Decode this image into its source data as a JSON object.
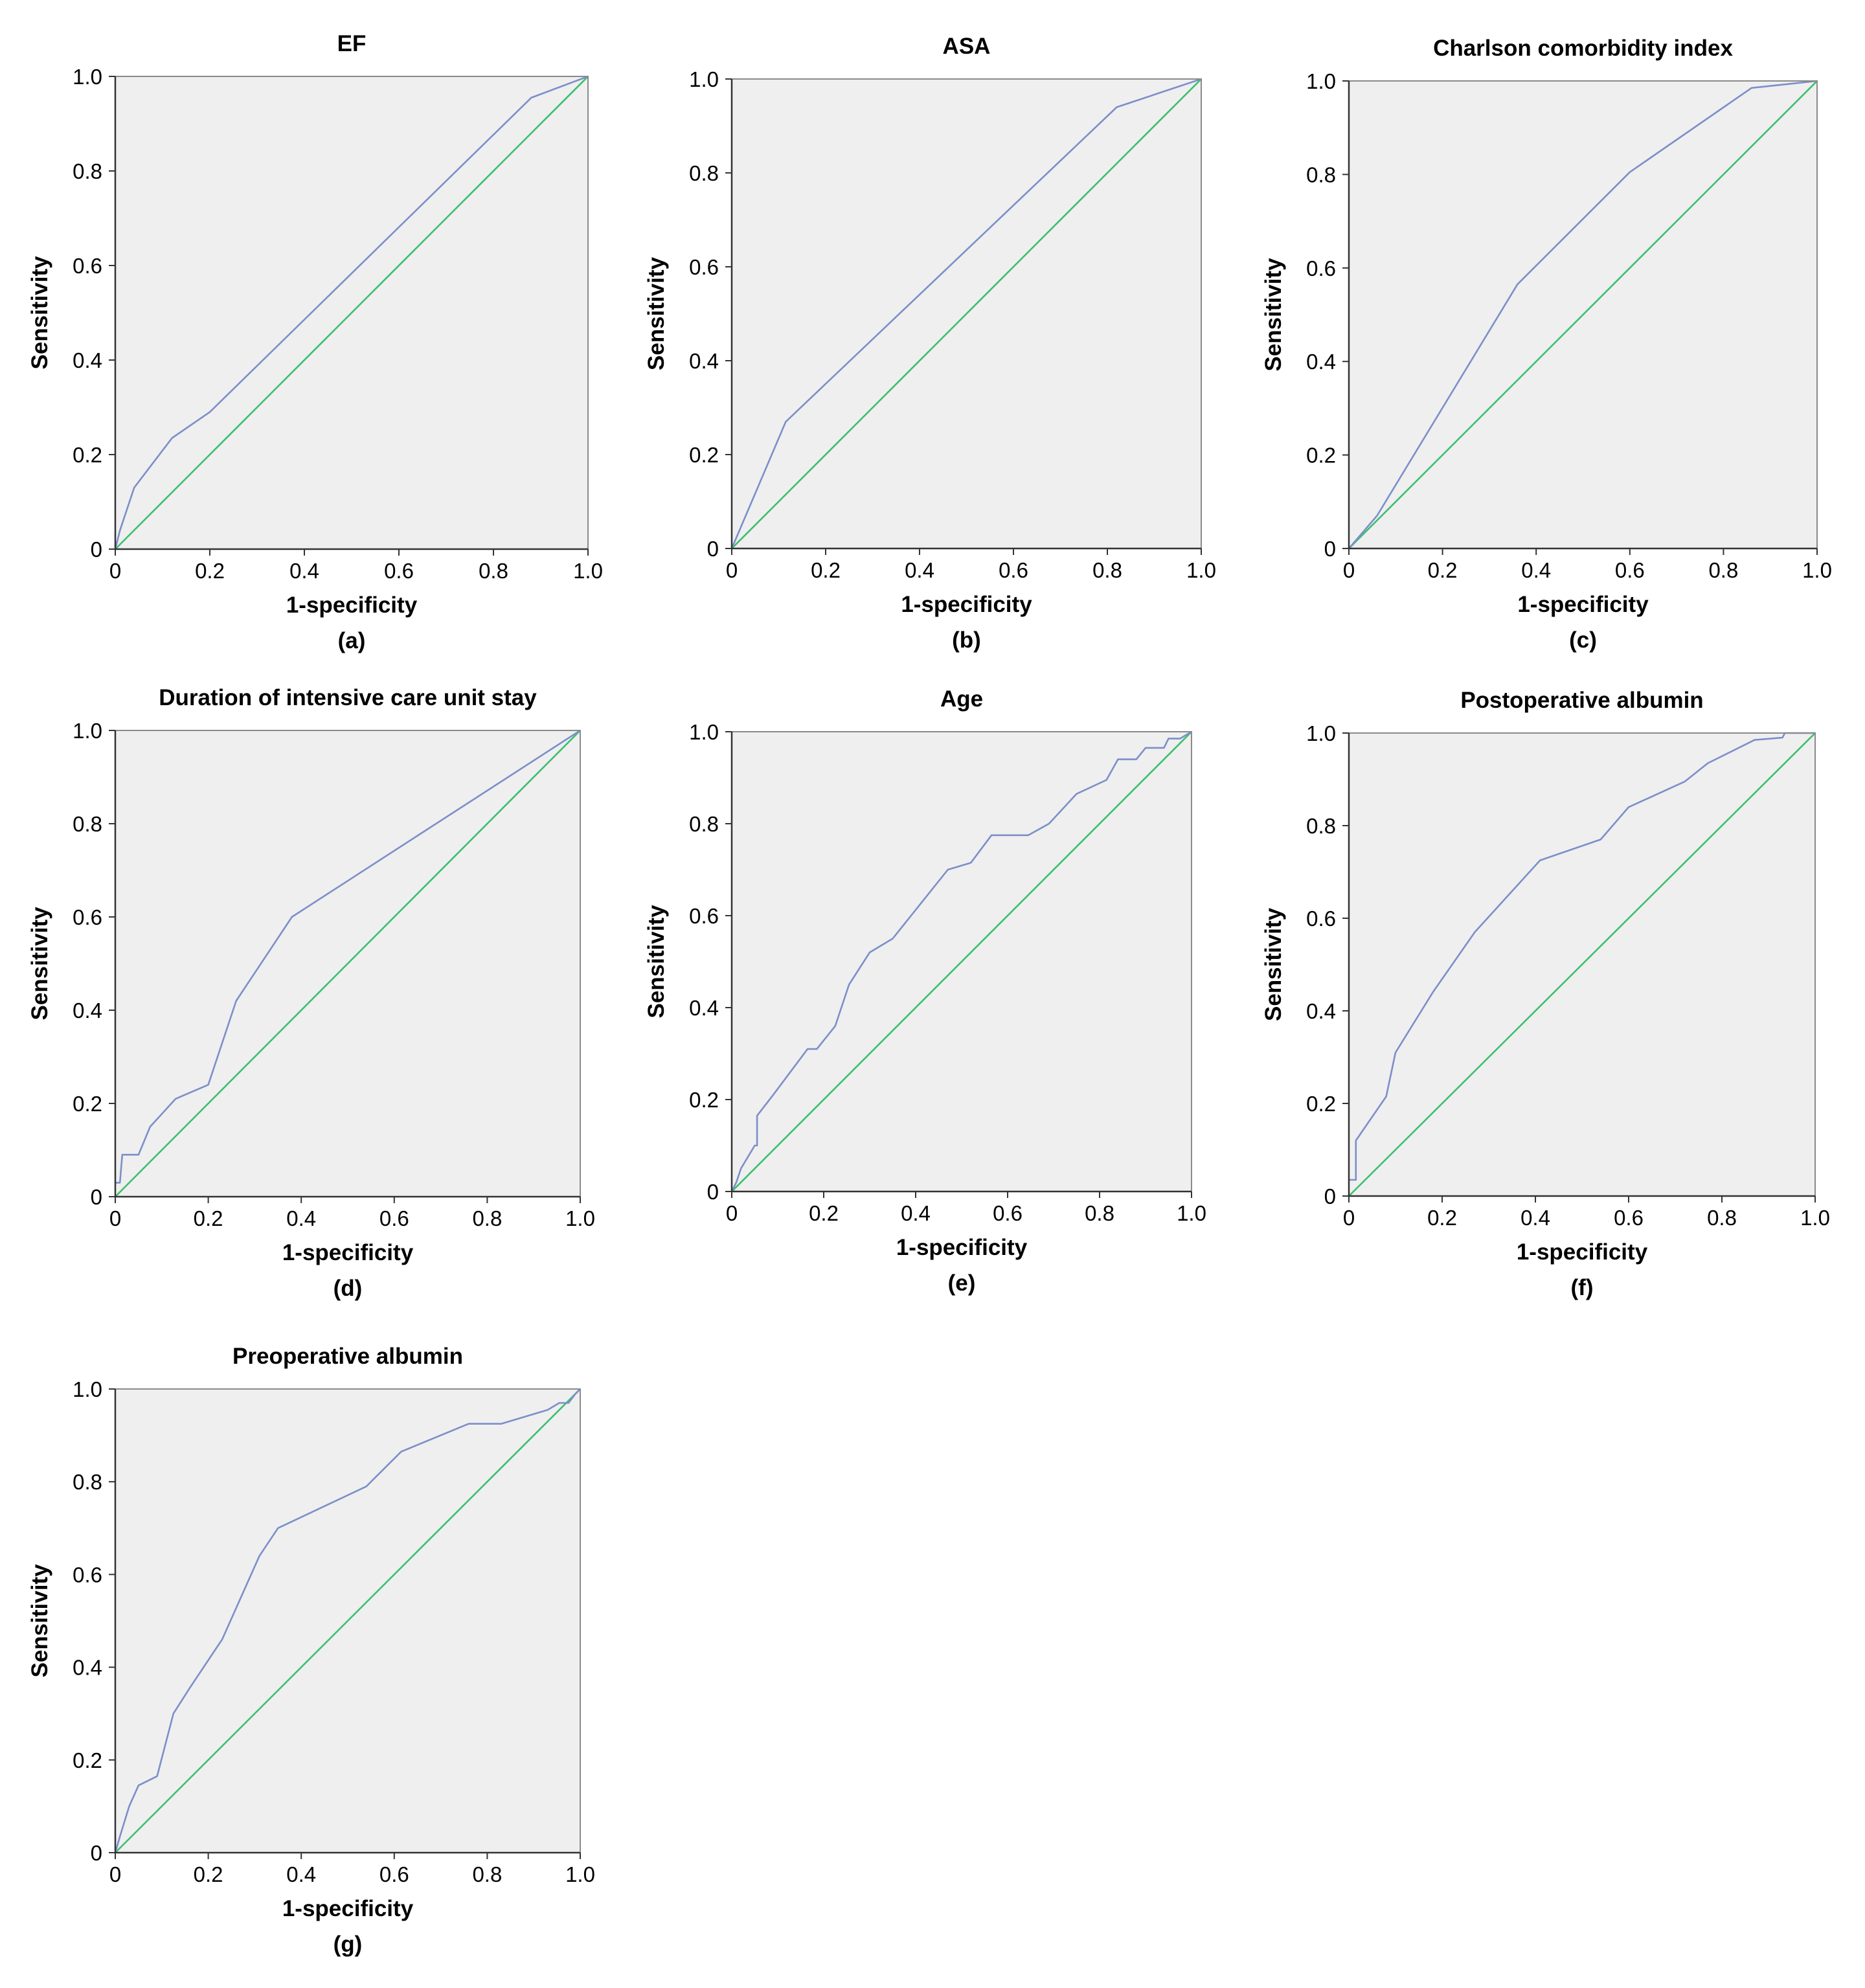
{
  "chart_data": [
    {
      "type": "line",
      "title": "EF",
      "panel_label": "(a)",
      "xlabel": "1-specificity",
      "ylabel": "Sensitivity",
      "xlim": [
        0,
        1
      ],
      "ylim": [
        0,
        1
      ],
      "x_ticks": [
        "0",
        "0.2",
        "0.4",
        "0.6",
        "0.8",
        "1.0"
      ],
      "y_ticks": [
        "0",
        "0.2",
        "0.4",
        "0.6",
        "0.8",
        "1.0"
      ],
      "series": [
        {
          "name": "ROC curve",
          "color": "#7b8fc9",
          "x": [
            0,
            0.01,
            0.04,
            0.12,
            0.2,
            0.88,
            1.0
          ],
          "y": [
            0,
            0.04,
            0.13,
            0.235,
            0.29,
            0.955,
            1.0
          ]
        },
        {
          "name": "Reference line",
          "color": "#3dbf6f",
          "x": [
            0,
            1
          ],
          "y": [
            0,
            1
          ]
        }
      ]
    },
    {
      "type": "line",
      "title": "ASA",
      "panel_label": "(b)",
      "xlabel": "1-specificity",
      "ylabel": "Sensitivity",
      "xlim": [
        0,
        1
      ],
      "ylim": [
        0,
        1
      ],
      "x_ticks": [
        "0",
        "0.2",
        "0.4",
        "0.6",
        "0.8",
        "1.0"
      ],
      "y_ticks": [
        "0",
        "0.2",
        "0.4",
        "0.6",
        "0.8",
        "1.0"
      ],
      "series": [
        {
          "name": "ROC curve",
          "color": "#7b8fc9",
          "x": [
            0,
            0.115,
            0.82,
            1.0
          ],
          "y": [
            0,
            0.27,
            0.94,
            1.0
          ]
        },
        {
          "name": "Reference line",
          "color": "#3dbf6f",
          "x": [
            0,
            1
          ],
          "y": [
            0,
            1
          ]
        }
      ]
    },
    {
      "type": "line",
      "title": "Charlson comorbidity index",
      "panel_label": "(c)",
      "xlabel": "1-specificity",
      "ylabel": "Sensitivity",
      "xlim": [
        0,
        1
      ],
      "ylim": [
        0,
        1
      ],
      "x_ticks": [
        "0",
        "0.2",
        "0.4",
        "0.6",
        "0.8",
        "1.0"
      ],
      "y_ticks": [
        "0",
        "0.2",
        "0.4",
        "0.6",
        "0.8",
        "1.0"
      ],
      "series": [
        {
          "name": "ROC curve",
          "color": "#7b8fc9",
          "x": [
            0,
            0.06,
            0.36,
            0.6,
            0.86,
            1.0
          ],
          "y": [
            0,
            0.07,
            0.565,
            0.805,
            0.985,
            1.0
          ]
        },
        {
          "name": "Reference line",
          "color": "#3dbf6f",
          "x": [
            0,
            1
          ],
          "y": [
            0,
            1
          ]
        }
      ]
    },
    {
      "type": "line",
      "title": "Duration of intensive care unit stay",
      "panel_label": "(d)",
      "xlabel": "1-specificity",
      "ylabel": "Sensitivity",
      "xlim": [
        0,
        1
      ],
      "ylim": [
        0,
        1
      ],
      "x_ticks": [
        "0",
        "0.2",
        "0.4",
        "0.6",
        "0.8",
        "1.0"
      ],
      "y_ticks": [
        "0",
        "0.2",
        "0.4",
        "0.6",
        "0.8",
        "1.0"
      ],
      "series": [
        {
          "name": "ROC curve",
          "color": "#7b8fc9",
          "x": [
            0,
            0.01,
            0.015,
            0.05,
            0.075,
            0.13,
            0.2,
            0.26,
            0.38,
            1.0
          ],
          "y": [
            0.03,
            0.03,
            0.09,
            0.09,
            0.15,
            0.21,
            0.24,
            0.42,
            0.6,
            1.0
          ]
        },
        {
          "name": "Reference line",
          "color": "#3dbf6f",
          "x": [
            0,
            1
          ],
          "y": [
            0,
            1
          ]
        }
      ]
    },
    {
      "type": "line",
      "title": "Age",
      "panel_label": "(e)",
      "xlabel": "1-specificity",
      "ylabel": "Sensitivity",
      "xlim": [
        0,
        1
      ],
      "ylim": [
        0,
        1
      ],
      "x_ticks": [
        "0",
        "0.2",
        "0.4",
        "0.6",
        "0.8",
        "1.0"
      ],
      "y_ticks": [
        "0",
        "0.2",
        "0.4",
        "0.6",
        "0.8",
        "1.0"
      ],
      "series": [
        {
          "name": "ROC curve",
          "color": "#7b8fc9",
          "x": [
            0,
            0.01,
            0.02,
            0.05,
            0.055,
            0.055,
            0.09,
            0.165,
            0.185,
            0.225,
            0.255,
            0.3,
            0.35,
            0.39,
            0.47,
            0.52,
            0.565,
            0.645,
            0.69,
            0.75,
            0.815,
            0.84,
            0.88,
            0.9,
            0.94,
            0.95,
            0.975,
            1.0
          ],
          "y": [
            0,
            0.02,
            0.05,
            0.1,
            0.1,
            0.165,
            0.21,
            0.31,
            0.31,
            0.36,
            0.45,
            0.52,
            0.55,
            0.6,
            0.7,
            0.715,
            0.775,
            0.775,
            0.8,
            0.865,
            0.895,
            0.94,
            0.94,
            0.965,
            0.965,
            0.985,
            0.985,
            1.0
          ]
        },
        {
          "name": "Reference line",
          "color": "#3dbf6f",
          "x": [
            0,
            1
          ],
          "y": [
            0,
            1
          ]
        }
      ]
    },
    {
      "type": "line",
      "title": "Postoperative albumin",
      "panel_label": "(f)",
      "xlabel": "1-specificity",
      "ylabel": "Sensitivity",
      "xlim": [
        0,
        1
      ],
      "ylim": [
        0,
        1
      ],
      "x_ticks": [
        "0",
        "0.2",
        "0.4",
        "0.6",
        "0.8",
        "1.0"
      ],
      "y_ticks": [
        "0",
        "0.2",
        "0.4",
        "0.6",
        "0.8",
        "1.0"
      ],
      "series": [
        {
          "name": "ROC curve",
          "color": "#7b8fc9",
          "x": [
            0,
            0.015,
            0.015,
            0.08,
            0.1,
            0.18,
            0.27,
            0.41,
            0.54,
            0.6,
            0.72,
            0.77,
            0.87,
            0.93,
            0.935,
            1.0
          ],
          "y": [
            0.035,
            0.035,
            0.12,
            0.215,
            0.31,
            0.44,
            0.57,
            0.725,
            0.77,
            0.84,
            0.895,
            0.935,
            0.985,
            0.99,
            1.0,
            1.0
          ]
        },
        {
          "name": "Reference line",
          "color": "#3dbf6f",
          "x": [
            0,
            1
          ],
          "y": [
            0,
            1
          ]
        }
      ]
    },
    {
      "type": "line",
      "title": "Preoperative albumin",
      "panel_label": "(g)",
      "xlabel": "1-specificity",
      "ylabel": "Sensitivity",
      "xlim": [
        0,
        1
      ],
      "ylim": [
        0,
        1
      ],
      "x_ticks": [
        "0",
        "0.2",
        "0.4",
        "0.6",
        "0.8",
        "1.0"
      ],
      "y_ticks": [
        "0",
        "0.2",
        "0.4",
        "0.6",
        "0.8",
        "1.0"
      ],
      "series": [
        {
          "name": "ROC curve",
          "color": "#7b8fc9",
          "x": [
            0,
            0.01,
            0.03,
            0.05,
            0.09,
            0.125,
            0.16,
            0.23,
            0.31,
            0.35,
            0.54,
            0.615,
            0.76,
            0.83,
            0.93,
            0.955,
            0.975,
            0.99,
            1.0
          ],
          "y": [
            0,
            0.035,
            0.1,
            0.145,
            0.165,
            0.3,
            0.355,
            0.46,
            0.64,
            0.7,
            0.79,
            0.865,
            0.925,
            0.925,
            0.955,
            0.97,
            0.97,
            0.99,
            1.0
          ]
        },
        {
          "name": "Reference line",
          "color": "#3dbf6f",
          "x": [
            0,
            1
          ],
          "y": [
            0,
            1
          ]
        }
      ]
    }
  ]
}
